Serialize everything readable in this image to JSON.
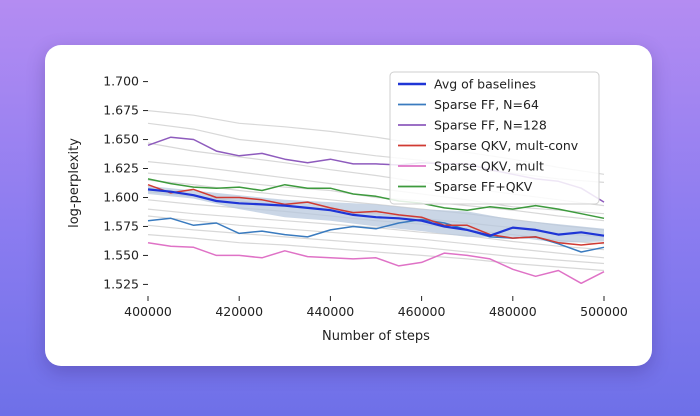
{
  "chart_data": {
    "type": "line",
    "title": "",
    "xlabel": "Number of steps",
    "ylabel": "log-perplexity",
    "xlim": [
      400000,
      500000
    ],
    "ylim": [
      1.515,
      1.71
    ],
    "xticks": [
      400000,
      420000,
      440000,
      460000,
      480000,
      500000
    ],
    "xtick_labels": [
      "400000",
      "420000",
      "440000",
      "460000",
      "480000",
      "500000"
    ],
    "yticks": [
      1.525,
      1.55,
      1.575,
      1.6,
      1.625,
      1.65,
      1.675,
      1.7
    ],
    "ytick_labels": [
      "1.525",
      "1.550",
      "1.575",
      "1.600",
      "1.625",
      "1.650",
      "1.675",
      "1.700"
    ],
    "legend_position": "top-right",
    "series": [
      {
        "name": "Avg of baselines",
        "color": "#1f35d6",
        "width": 2.2,
        "x": [
          400000,
          405000,
          410000,
          415000,
          420000,
          425000,
          430000,
          435000,
          440000,
          445000,
          450000,
          455000,
          460000,
          465000,
          470000,
          475000,
          480000,
          485000,
          490000,
          495000,
          500000
        ],
        "y": [
          1.607,
          1.605,
          1.602,
          1.597,
          1.595,
          1.594,
          1.593,
          1.591,
          1.589,
          1.585,
          1.583,
          1.582,
          1.58,
          1.575,
          1.572,
          1.567,
          1.574,
          1.572,
          1.568,
          1.57,
          1.567
        ]
      },
      {
        "name": "Sparse FF, N=64",
        "color": "#3a7bbf",
        "width": 1.5,
        "x": [
          400000,
          405000,
          410000,
          415000,
          420000,
          425000,
          430000,
          435000,
          440000,
          445000,
          450000,
          455000,
          460000,
          465000,
          470000,
          475000,
          480000,
          485000,
          490000,
          495000,
          500000
        ],
        "y": [
          1.58,
          1.582,
          1.576,
          1.578,
          1.569,
          1.571,
          1.568,
          1.566,
          1.572,
          1.575,
          1.573,
          1.578,
          1.581,
          1.578,
          1.572,
          1.566,
          1.565,
          1.566,
          1.56,
          1.553,
          1.557
        ]
      },
      {
        "name": "Sparse FF, N=128",
        "color": "#8e5bbd",
        "width": 1.5,
        "x": [
          400000,
          405000,
          410000,
          415000,
          420000,
          425000,
          430000,
          435000,
          440000,
          445000,
          450000,
          455000,
          460000,
          465000,
          470000,
          475000,
          480000,
          485000,
          490000,
          495000,
          500000
        ],
        "y": [
          1.645,
          1.652,
          1.65,
          1.64,
          1.636,
          1.638,
          1.633,
          1.63,
          1.633,
          1.629,
          1.629,
          1.628,
          1.63,
          1.629,
          1.629,
          1.624,
          1.62,
          1.616,
          1.614,
          1.608,
          1.596
        ]
      },
      {
        "name": "Sparse QKV, mult-conv",
        "color": "#d03a32",
        "width": 1.5,
        "x": [
          400000,
          405000,
          410000,
          415000,
          420000,
          425000,
          430000,
          435000,
          440000,
          445000,
          450000,
          455000,
          460000,
          465000,
          470000,
          475000,
          480000,
          485000,
          490000,
          495000,
          500000
        ],
        "y": [
          1.611,
          1.604,
          1.607,
          1.6,
          1.6,
          1.598,
          1.594,
          1.596,
          1.591,
          1.587,
          1.588,
          1.585,
          1.583,
          1.576,
          1.576,
          1.568,
          1.565,
          1.566,
          1.561,
          1.559,
          1.561
        ]
      },
      {
        "name": "Sparse QKV, mult",
        "color": "#df72c6",
        "width": 1.5,
        "x": [
          400000,
          405000,
          410000,
          415000,
          420000,
          425000,
          430000,
          435000,
          440000,
          445000,
          450000,
          455000,
          460000,
          465000,
          470000,
          475000,
          480000,
          485000,
          490000,
          495000,
          500000
        ],
        "y": [
          1.561,
          1.558,
          1.557,
          1.55,
          1.55,
          1.548,
          1.554,
          1.549,
          1.548,
          1.547,
          1.548,
          1.541,
          1.544,
          1.552,
          1.55,
          1.547,
          1.538,
          1.532,
          1.537,
          1.526,
          1.536
        ]
      },
      {
        "name": "Sparse FF+QKV",
        "color": "#3d9a3d",
        "width": 1.5,
        "x": [
          400000,
          405000,
          410000,
          415000,
          420000,
          425000,
          430000,
          435000,
          440000,
          445000,
          450000,
          455000,
          460000,
          465000,
          470000,
          475000,
          480000,
          485000,
          490000,
          495000,
          500000
        ],
        "y": [
          1.616,
          1.612,
          1.609,
          1.608,
          1.609,
          1.606,
          1.611,
          1.608,
          1.608,
          1.603,
          1.601,
          1.597,
          1.595,
          1.591,
          1.589,
          1.592,
          1.59,
          1.593,
          1.59,
          1.586,
          1.582
        ]
      }
    ],
    "baseline_runs": {
      "color": "#d8d8d8",
      "x": [
        400000,
        410000,
        420000,
        430000,
        440000,
        450000,
        460000,
        470000,
        480000,
        490000,
        500000
      ],
      "runs": [
        [
          1.675,
          1.671,
          1.664,
          1.661,
          1.657,
          1.652,
          1.646,
          1.639,
          1.633,
          1.626,
          1.62
        ],
        [
          1.664,
          1.659,
          1.65,
          1.646,
          1.641,
          1.636,
          1.632,
          1.625,
          1.621,
          1.616,
          1.613
        ],
        [
          1.647,
          1.64,
          1.635,
          1.63,
          1.624,
          1.619,
          1.613,
          1.608,
          1.603,
          1.598,
          1.593
        ],
        [
          1.631,
          1.627,
          1.622,
          1.617,
          1.612,
          1.608,
          1.603,
          1.598,
          1.592,
          1.589,
          1.586
        ],
        [
          1.621,
          1.618,
          1.613,
          1.609,
          1.606,
          1.6,
          1.597,
          1.593,
          1.589,
          1.584,
          1.58
        ],
        [
          1.615,
          1.611,
          1.606,
          1.602,
          1.598,
          1.594,
          1.59,
          1.586,
          1.581,
          1.576,
          1.572
        ],
        [
          1.605,
          1.601,
          1.597,
          1.593,
          1.59,
          1.586,
          1.582,
          1.578,
          1.574,
          1.569,
          1.566
        ],
        [
          1.598,
          1.594,
          1.591,
          1.588,
          1.584,
          1.58,
          1.577,
          1.572,
          1.568,
          1.563,
          1.56
        ],
        [
          1.59,
          1.586,
          1.583,
          1.58,
          1.577,
          1.574,
          1.57,
          1.567,
          1.562,
          1.558,
          1.555
        ],
        [
          1.584,
          1.58,
          1.576,
          1.573,
          1.57,
          1.567,
          1.564,
          1.56,
          1.556,
          1.552,
          1.548
        ],
        [
          1.576,
          1.572,
          1.569,
          1.566,
          1.563,
          1.56,
          1.557,
          1.553,
          1.549,
          1.546,
          1.543
        ],
        [
          1.568,
          1.565,
          1.561,
          1.559,
          1.556,
          1.553,
          1.55,
          1.547,
          1.543,
          1.54,
          1.537
        ]
      ]
    },
    "confidence_band": {
      "color": "#b8c8dd",
      "x": [
        400000,
        410000,
        420000,
        430000,
        440000,
        450000,
        460000,
        470000,
        480000,
        490000,
        500000
      ],
      "upper": [
        1.61,
        1.606,
        1.602,
        1.598,
        1.596,
        1.594,
        1.59,
        1.588,
        1.581,
        1.577,
        1.573
      ],
      "lower": [
        1.603,
        1.599,
        1.59,
        1.583,
        1.58,
        1.575,
        1.571,
        1.566,
        1.566,
        1.561,
        1.562
      ]
    }
  }
}
